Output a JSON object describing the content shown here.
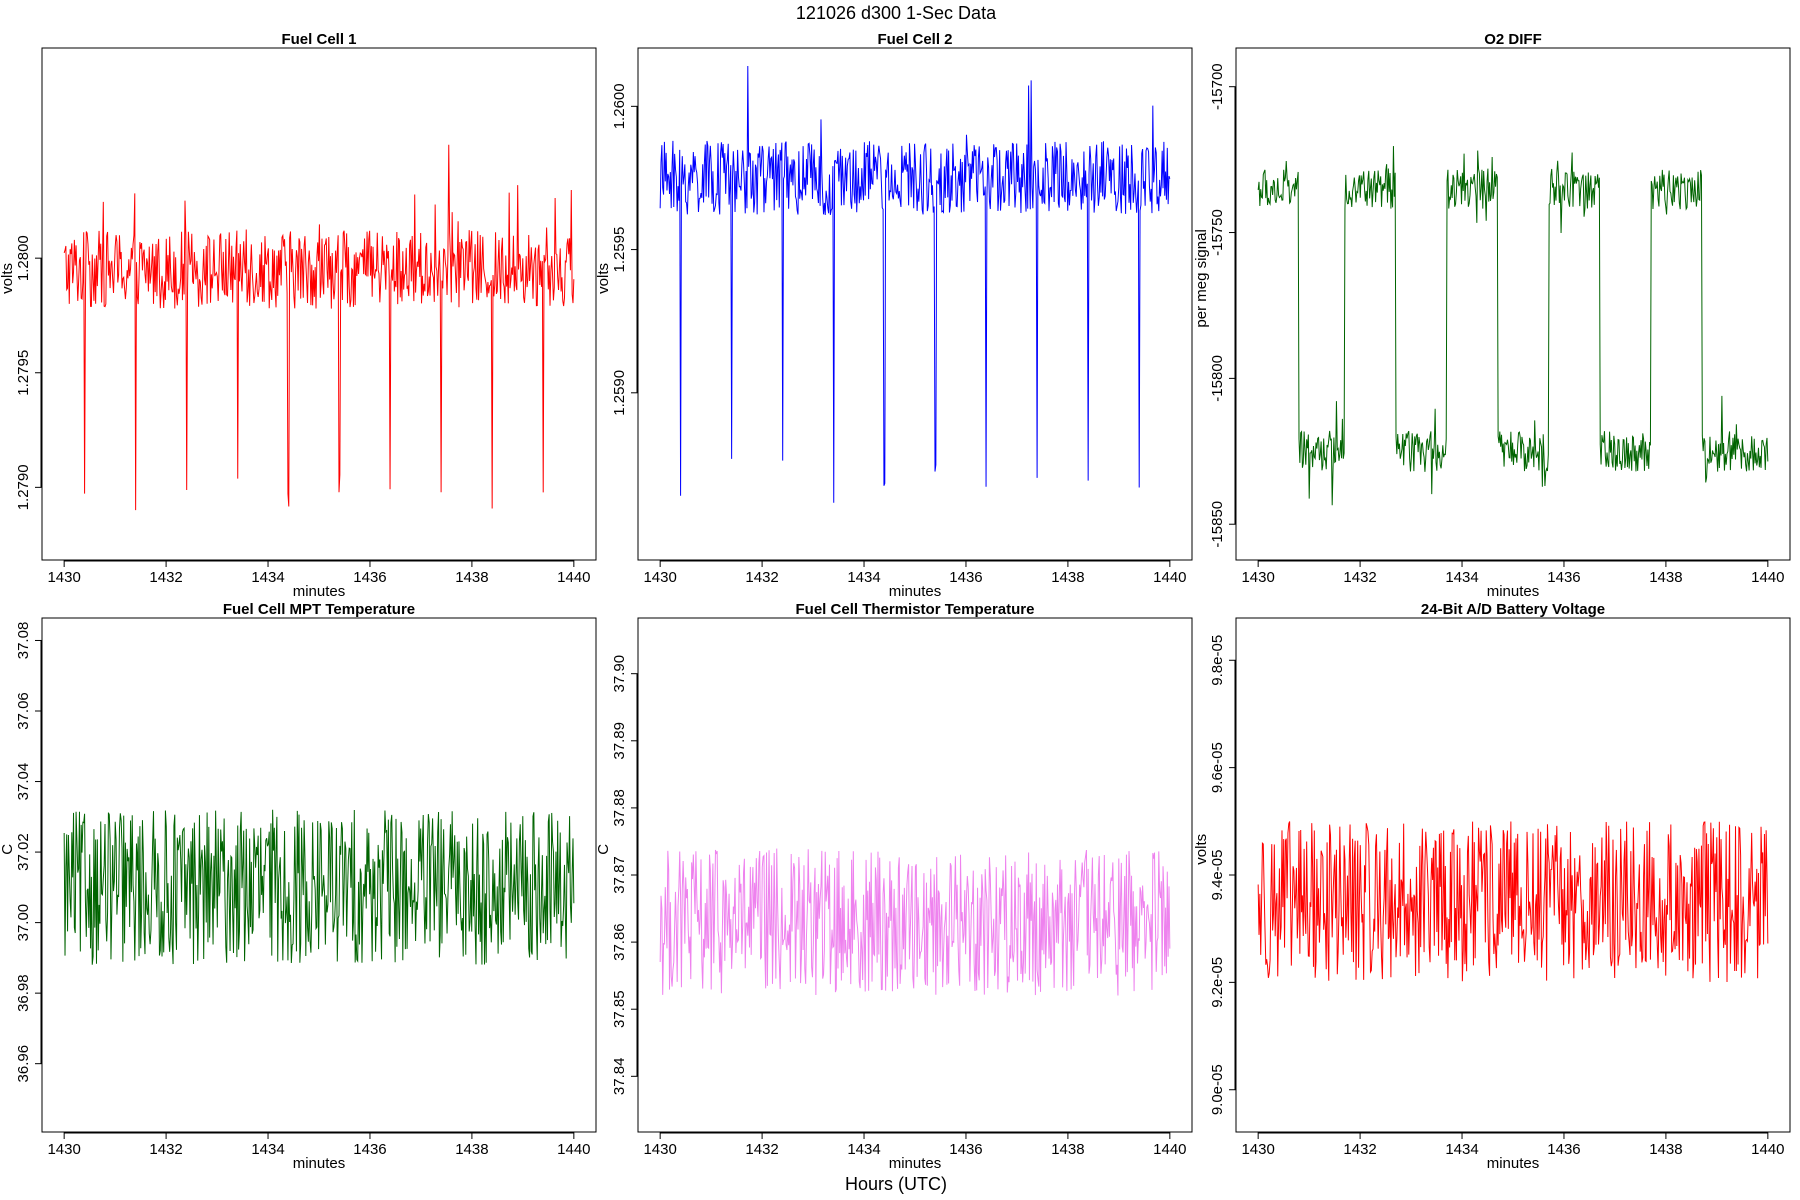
{
  "figure": {
    "title": "121026   d300   1-Sec Data",
    "xlabel": "Hours (UTC)"
  },
  "chart_data": [
    {
      "type": "line",
      "title": "Fuel Cell 1",
      "xlabel": "minutes",
      "ylabel": "volts",
      "color": "#ff0000",
      "xlim": [
        1430,
        1440
      ],
      "ylim": [
        1.27875,
        1.28085
      ],
      "xticks": [
        1430,
        1432,
        1434,
        1436,
        1438,
        1440
      ],
      "yticks": [
        1.279,
        1.2795,
        1.28
      ],
      "ytick_labels": [
        "1.2790",
        "1.2795",
        "1.2800"
      ],
      "pattern": {
        "base": 1.27995,
        "noise": 0.00017,
        "spike_up": 0.0004,
        "dips_at": [
          1430.4,
          1431.4,
          1432.4,
          1433.4,
          1434.4,
          1435.4,
          1436.4,
          1437.4,
          1438.4,
          1439.4
        ],
        "dip_to": 1.2789
      }
    },
    {
      "type": "line",
      "title": "Fuel Cell 2",
      "xlabel": "minutes",
      "ylabel": "volts",
      "color": "#0000ff",
      "xlim": [
        1430,
        1440
      ],
      "ylim": [
        1.25847,
        1.26015
      ],
      "xticks": [
        1430,
        1432,
        1434,
        1436,
        1438,
        1440
      ],
      "yticks": [
        1.259,
        1.2595,
        1.26
      ],
      "ytick_labels": [
        "1.2590",
        "1.2595",
        "1.2600"
      ],
      "pattern": {
        "base": 1.25975,
        "noise": 0.00013,
        "spike_up": 0.0003,
        "dips_at": [
          1430.4,
          1431.4,
          1432.4,
          1433.4,
          1434.4,
          1435.4,
          1436.4,
          1437.4,
          1438.4,
          1439.4
        ],
        "dip_to": 1.2586
      }
    },
    {
      "type": "line",
      "title": "O2 DIFF",
      "xlabel": "minutes",
      "ylabel": "per meg signal",
      "color": "#006400",
      "xlim": [
        1430,
        1440
      ],
      "ylim": [
        -15857,
        -15692
      ],
      "xticks": [
        1430,
        1432,
        1434,
        1436,
        1438,
        1440
      ],
      "yticks": [
        -15700,
        -15750,
        -15800,
        -15850
      ],
      "ytick_labels": [
        "-15700",
        "-15750",
        "-15800",
        "-15850"
      ],
      "pattern": {
        "square_wave": true,
        "high": -15735,
        "low": -15825,
        "transitions": [
          1430.8,
          1431.7,
          1432.7,
          1433.7,
          1434.7,
          1435.7,
          1436.7,
          1437.7,
          1438.7
        ],
        "noise": 7
      }
    },
    {
      "type": "line",
      "title": "Fuel Cell MPT Temperature",
      "xlabel": "minutes",
      "ylabel": "C",
      "color": "#006400",
      "xlim": [
        1430,
        1440
      ],
      "ylim": [
        36.945,
        37.082
      ],
      "xticks": [
        1430,
        1432,
        1434,
        1436,
        1438,
        1440
      ],
      "yticks": [
        36.96,
        36.98,
        37.0,
        37.02,
        37.04,
        37.06,
        37.08
      ],
      "ytick_labels": [
        "36.96",
        "36.98",
        "37.00",
        "37.02",
        "37.04",
        "37.06",
        "37.08"
      ],
      "pattern": {
        "base": 37.01,
        "noise": 0.022
      }
    },
    {
      "type": "line",
      "title": "Fuel Cell Thermistor Temperature",
      "xlabel": "minutes",
      "ylabel": "C",
      "color": "#ee82ee",
      "xlim": [
        1430,
        1440
      ],
      "ylim": [
        37.834,
        37.906
      ],
      "xticks": [
        1430,
        1432,
        1434,
        1436,
        1438,
        1440
      ],
      "yticks": [
        37.84,
        37.85,
        37.86,
        37.87,
        37.88,
        37.89,
        37.9
      ],
      "ytick_labels": [
        "37.84",
        "37.85",
        "37.86",
        "37.87",
        "37.88",
        "37.89",
        "37.90"
      ],
      "pattern": {
        "base": 37.863,
        "noise": 0.011
      }
    },
    {
      "type": "line",
      "title": "24-Bit A/D Battery Voltage",
      "xlabel": "minutes",
      "ylabel": "volts",
      "color": "#ff0000",
      "xlim": [
        1430,
        1440
      ],
      "ylim": [
        8.95e-05,
        9.85e-05
      ],
      "xticks": [
        1430,
        1432,
        1434,
        1436,
        1438,
        1440
      ],
      "yticks": [
        9e-05,
        9.2e-05,
        9.4e-05,
        9.6e-05,
        9.8e-05
      ],
      "ytick_labels": [
        "9.0e-05",
        "9.2e-05",
        "9.4e-05",
        "9.6e-05",
        "9.8e-05"
      ],
      "pattern": {
        "base": 9.35e-05,
        "noise": 1.5e-06
      }
    }
  ]
}
